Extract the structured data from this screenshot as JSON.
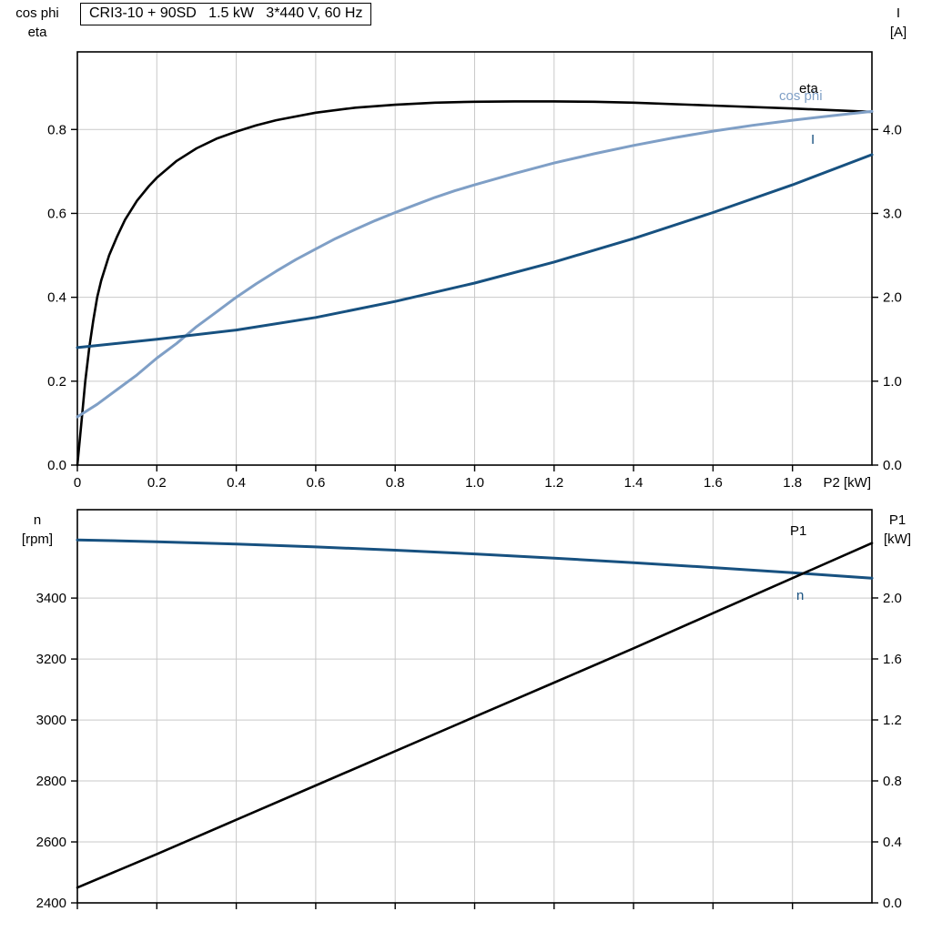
{
  "title_box": {
    "text": "CRI3-10 + 90SD   1.5 kW   3*440 V, 60 Hz"
  },
  "colors": {
    "black_curve": "#000000",
    "light_blue_curve": "#7f9fc6",
    "dark_blue_curve": "#175180",
    "grid": "#c9c9c9",
    "axis": "#000000",
    "background": "#ffffff"
  },
  "chart_data": [
    {
      "type": "line",
      "id": "motor-electrical-chart",
      "x": {
        "range": [
          0,
          2.0
        ],
        "ticks": [
          0,
          0.2,
          0.4,
          0.6,
          0.8,
          1.0,
          1.2,
          1.4,
          1.6,
          1.8
        ],
        "tick_labels": [
          "0",
          "0.2",
          "0.4",
          "0.6",
          "0.8",
          "1.0",
          "1.2",
          "1.4",
          "1.6",
          "1.8"
        ],
        "axis_label": "P2 [kW]"
      },
      "left_axis": {
        "title_lines": [
          "cos phi",
          "eta"
        ],
        "range": [
          0,
          0.985
        ],
        "ticks": [
          0.0,
          0.2,
          0.4,
          0.6,
          0.8
        ],
        "tick_labels": [
          "0.0",
          "0.2",
          "0.4",
          "0.6",
          "0.8"
        ]
      },
      "right_axis": {
        "title_lines": [
          "I",
          "[A]"
        ],
        "range": [
          0,
          4.925
        ],
        "ticks": [
          0.0,
          1.0,
          2.0,
          3.0,
          4.0
        ],
        "tick_labels": [
          "0.0",
          "1.0",
          "2.0",
          "3.0",
          "4.0"
        ]
      },
      "series": [
        {
          "name": "eta",
          "axis": "left",
          "color_key": "black_curve",
          "width": 2.6,
          "points": [
            [
              0,
              0
            ],
            [
              0.01,
              0.1
            ],
            [
              0.02,
              0.2
            ],
            [
              0.03,
              0.28
            ],
            [
              0.04,
              0.345
            ],
            [
              0.05,
              0.4
            ],
            [
              0.06,
              0.44
            ],
            [
              0.08,
              0.5
            ],
            [
              0.1,
              0.545
            ],
            [
              0.12,
              0.585
            ],
            [
              0.15,
              0.63
            ],
            [
              0.18,
              0.665
            ],
            [
              0.2,
              0.685
            ],
            [
              0.25,
              0.725
            ],
            [
              0.3,
              0.755
            ],
            [
              0.35,
              0.778
            ],
            [
              0.4,
              0.795
            ],
            [
              0.45,
              0.81
            ],
            [
              0.5,
              0.822
            ],
            [
              0.6,
              0.84
            ],
            [
              0.7,
              0.852
            ],
            [
              0.8,
              0.859
            ],
            [
              0.9,
              0.864
            ],
            [
              1.0,
              0.866
            ],
            [
              1.1,
              0.867
            ],
            [
              1.2,
              0.867
            ],
            [
              1.3,
              0.866
            ],
            [
              1.4,
              0.864
            ],
            [
              1.6,
              0.857
            ],
            [
              1.8,
              0.85
            ],
            [
              2.0,
              0.842
            ]
          ]
        },
        {
          "name": "cos phi",
          "axis": "left",
          "color_key": "light_blue_curve",
          "width": 3,
          "points": [
            [
              0,
              0.115
            ],
            [
              0.05,
              0.145
            ],
            [
              0.1,
              0.18
            ],
            [
              0.15,
              0.215
            ],
            [
              0.2,
              0.255
            ],
            [
              0.25,
              0.29
            ],
            [
              0.3,
              0.33
            ],
            [
              0.35,
              0.365
            ],
            [
              0.4,
              0.4
            ],
            [
              0.45,
              0.432
            ],
            [
              0.5,
              0.462
            ],
            [
              0.55,
              0.49
            ],
            [
              0.6,
              0.515
            ],
            [
              0.65,
              0.54
            ],
            [
              0.7,
              0.562
            ],
            [
              0.75,
              0.583
            ],
            [
              0.8,
              0.602
            ],
            [
              0.85,
              0.62
            ],
            [
              0.9,
              0.638
            ],
            [
              0.95,
              0.654
            ],
            [
              1.0,
              0.668
            ],
            [
              1.1,
              0.695
            ],
            [
              1.2,
              0.72
            ],
            [
              1.3,
              0.742
            ],
            [
              1.4,
              0.762
            ],
            [
              1.5,
              0.78
            ],
            [
              1.6,
              0.796
            ],
            [
              1.7,
              0.81
            ],
            [
              1.8,
              0.822
            ],
            [
              1.9,
              0.833
            ],
            [
              2.0,
              0.843
            ]
          ]
        },
        {
          "name": "I",
          "axis": "right",
          "color_key": "dark_blue_curve",
          "width": 3,
          "points": [
            [
              0,
              1.4
            ],
            [
              0.2,
              1.5
            ],
            [
              0.4,
              1.61
            ],
            [
              0.6,
              1.76
            ],
            [
              0.8,
              1.95
            ],
            [
              1.0,
              2.17
            ],
            [
              1.2,
              2.42
            ],
            [
              1.4,
              2.7
            ],
            [
              1.6,
              3.01
            ],
            [
              1.8,
              3.34
            ],
            [
              2.0,
              3.7
            ]
          ]
        }
      ]
    },
    {
      "type": "line",
      "id": "speed-power-chart",
      "x": {
        "range": [
          0,
          2.0
        ],
        "ticks": [
          0,
          0.2,
          0.4,
          0.6,
          0.8,
          1.0,
          1.2,
          1.4,
          1.6,
          1.8
        ],
        "tick_labels": null,
        "axis_label": null
      },
      "left_axis": {
        "title_lines": [
          "n",
          "[rpm]"
        ],
        "range": [
          2400,
          3690
        ],
        "ticks": [
          2400,
          2600,
          2800,
          3000,
          3200,
          3400
        ],
        "tick_labels": [
          "2400",
          "2600",
          "2800",
          "3000",
          "3200",
          "3400"
        ]
      },
      "right_axis": {
        "title_lines": [
          "P1",
          "[kW]"
        ],
        "range": [
          0,
          2.579
        ],
        "ticks": [
          0.0,
          0.4,
          0.8,
          1.2,
          1.6,
          2.0
        ],
        "tick_labels": [
          "0.0",
          "0.4",
          "0.8",
          "1.2",
          "1.6",
          "2.0"
        ]
      },
      "series": [
        {
          "name": "n",
          "axis": "left",
          "color_key": "dark_blue_curve",
          "width": 3,
          "points": [
            [
              0,
              3591
            ],
            [
              0.2,
              3585
            ],
            [
              0.4,
              3577
            ],
            [
              0.6,
              3568
            ],
            [
              0.8,
              3557
            ],
            [
              1.0,
              3545
            ],
            [
              1.2,
              3531
            ],
            [
              1.4,
              3516
            ],
            [
              1.6,
              3500
            ],
            [
              1.8,
              3483
            ],
            [
              2.0,
              3465
            ]
          ]
        },
        {
          "name": "P1",
          "axis": "right",
          "color_key": "black_curve",
          "width": 2.6,
          "points": [
            [
              0,
              0.1
            ],
            [
              0.2,
              0.32
            ],
            [
              0.4,
              0.545
            ],
            [
              0.6,
              0.77
            ],
            [
              0.8,
              0.995
            ],
            [
              1.0,
              1.22
            ],
            [
              1.2,
              1.445
            ],
            [
              1.4,
              1.67
            ],
            [
              1.6,
              1.9
            ],
            [
              1.8,
              2.13
            ],
            [
              2.0,
              2.36
            ]
          ]
        }
      ]
    }
  ]
}
